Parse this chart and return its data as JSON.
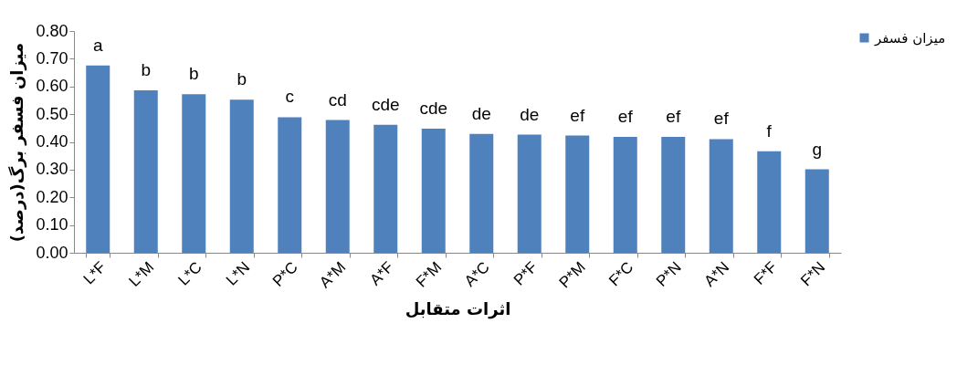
{
  "chart_data": {
    "type": "bar",
    "xlabel": "اثرات متقابل",
    "ylabel": "میزان فسفر برگ(درصد)",
    "categories": [
      "L*F",
      "L*M",
      "L*C",
      "L*N",
      "P*C",
      "A*M",
      "A*F",
      "F*M",
      "A*C",
      "P*F",
      "P*M",
      "F*C",
      "P*N",
      "A*N",
      "F*F",
      "F*N"
    ],
    "series": [
      {
        "name": "میزان فسفر",
        "color": "#4f81bd",
        "values": [
          0.676,
          0.586,
          0.572,
          0.552,
          0.489,
          0.479,
          0.462,
          0.448,
          0.429,
          0.426,
          0.423,
          0.418,
          0.418,
          0.41,
          0.366,
          0.301
        ],
        "value_labels": [
          "a",
          "b",
          "b",
          "b",
          "c",
          "cd",
          "cde",
          "cde",
          "de",
          "de",
          "ef",
          "ef",
          "ef",
          "ef",
          "f",
          "g"
        ]
      }
    ],
    "ylim": [
      0,
      0.8
    ],
    "yticks": [
      {
        "value": 0,
        "label": "0.00"
      },
      {
        "value": 0.1,
        "label": "0.10"
      },
      {
        "value": 0.2,
        "label": "0.20"
      },
      {
        "value": 0.3,
        "label": "0.30"
      },
      {
        "value": 0.4,
        "label": "0.40"
      },
      {
        "value": 0.5,
        "label": "0.50"
      },
      {
        "value": 0.6,
        "label": "0.60"
      },
      {
        "value": 0.7,
        "label": "0.70"
      },
      {
        "value": 0.8,
        "label": "0.80"
      }
    ],
    "grid": false,
    "legend": "right"
  }
}
